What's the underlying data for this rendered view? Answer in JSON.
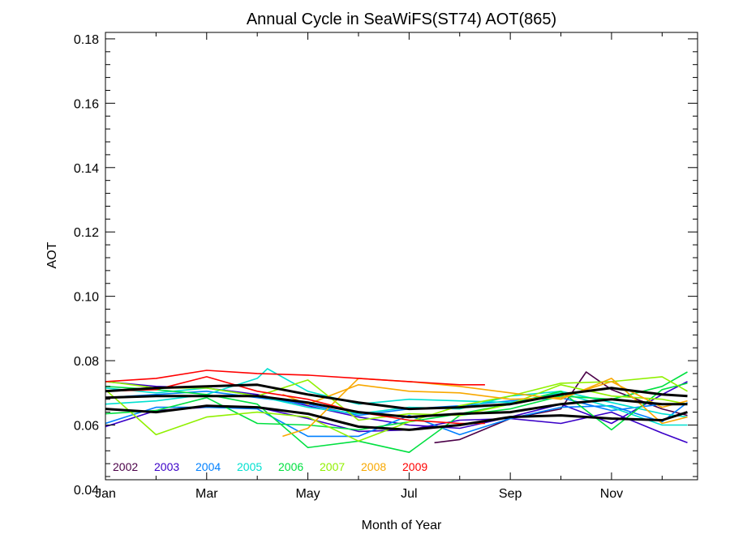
{
  "chart_data": {
    "type": "line",
    "title": "Annual Cycle in SeaWiFS(ST74) AOT(865)",
    "xlabel": "Month of Year",
    "ylabel": "AOT",
    "xlim": [
      1,
      12.7
    ],
    "ylim": [
      0.043,
      0.182
    ],
    "x_ticks": [
      1,
      3,
      5,
      7,
      9,
      11
    ],
    "x_tick_labels": [
      "Jan",
      "Mar",
      "May",
      "Jul",
      "Sep",
      "Nov"
    ],
    "y_ticks": [
      0.04,
      0.06,
      0.08,
      0.1,
      0.12,
      0.14,
      0.16,
      0.18
    ],
    "y_tick_labels": [
      "0.04",
      "0.06",
      "0.08",
      "0.10",
      "0.12",
      "0.14",
      "0.16",
      "0.18"
    ],
    "legend_position": "bottom-left",
    "series": [
      {
        "name": "2002",
        "color": "#4B0048",
        "lines": [
          {
            "x": [
              7.5,
              8,
              9,
              10,
              10.5,
              11,
              12,
              12.5
            ],
            "y": [
              0.0545,
              0.0555,
              0.062,
              0.065,
              0.0765,
              0.071,
              0.065,
              0.063
            ]
          }
        ]
      },
      {
        "name": "2003",
        "color": "#3A00C8",
        "lines": [
          {
            "x": [
              1,
              2,
              3,
              4,
              5,
              6,
              7,
              8,
              9,
              10,
              11,
              12,
              12.5
            ],
            "y": [
              0.0735,
              0.072,
              0.0715,
              0.0695,
              0.066,
              0.0625,
              0.06,
              0.059,
              0.0625,
              0.0665,
              0.0605,
              0.0695,
              0.0735
            ]
          },
          {
            "x": [
              1,
              2,
              3,
              4,
              5,
              6,
              7,
              8,
              9,
              10,
              11,
              12,
              12.5
            ],
            "y": [
              0.0595,
              0.0645,
              0.0655,
              0.0655,
              0.062,
              0.058,
              0.0585,
              0.0615,
              0.062,
              0.0605,
              0.064,
              0.0575,
              0.0545
            ]
          }
        ]
      },
      {
        "name": "2004",
        "color": "#0080FF",
        "lines": [
          {
            "x": [
              1,
              2,
              3,
              4,
              5,
              6,
              7,
              8,
              9,
              10,
              11,
              12,
              12.5
            ],
            "y": [
              0.0605,
              0.0655,
              0.0655,
              0.065,
              0.0565,
              0.0565,
              0.063,
              0.057,
              0.062,
              0.0655,
              0.066,
              0.061,
              0.067
            ]
          },
          {
            "x": [
              1,
              2,
              3,
              4,
              5,
              6,
              7,
              8,
              9,
              10,
              11,
              12,
              12.5
            ],
            "y": [
              0.0685,
              0.0695,
              0.0705,
              0.0685,
              0.0665,
              0.063,
              0.065,
              0.066,
              0.0675,
              0.0685,
              0.0645,
              0.0665,
              0.0665
            ]
          }
        ]
      },
      {
        "name": "2005",
        "color": "#00E0D0",
        "lines": [
          {
            "x": [
              1,
              2,
              3,
              4,
              4.2,
              5,
              6,
              7,
              8,
              9,
              10,
              11,
              12,
              12.5
            ],
            "y": [
              0.0665,
              0.0675,
              0.0695,
              0.0745,
              0.0775,
              0.0705,
              0.0665,
              0.068,
              0.0675,
              0.067,
              0.07,
              0.0655,
              0.06,
              0.06
            ]
          },
          {
            "x": [
              1,
              2,
              3,
              4,
              5,
              6,
              7,
              8,
              9,
              10,
              11,
              12,
              12.5
            ],
            "y": [
              0.0715,
              0.07,
              0.0715,
              0.069,
              0.0655,
              0.0635,
              0.0655,
              0.065,
              0.069,
              0.0705,
              0.067,
              0.0635,
              0.0625
            ]
          }
        ]
      },
      {
        "name": "2006",
        "color": "#00E040",
        "lines": [
          {
            "x": [
              1,
              2,
              3,
              4,
              5,
              6,
              7,
              8,
              9,
              10,
              11,
              12,
              12.5
            ],
            "y": [
              0.072,
              0.071,
              0.0695,
              0.0665,
              0.053,
              0.055,
              0.0515,
              0.063,
              0.065,
              0.069,
              0.068,
              0.072,
              0.0765
            ]
          },
          {
            "x": [
              1,
              2,
              3,
              4,
              5,
              6,
              7,
              8,
              9,
              10,
              11,
              12,
              12.5
            ],
            "y": [
              0.0635,
              0.0645,
              0.0685,
              0.0605,
              0.06,
              0.0585,
              0.061,
              0.0635,
              0.0665,
              0.0705,
              0.0585,
              0.071,
              0.073
            ]
          }
        ]
      },
      {
        "name": "2007",
        "color": "#90F000",
        "lines": [
          {
            "x": [
              1,
              2,
              3,
              4,
              5,
              6,
              7,
              8,
              9,
              10,
              11,
              12,
              12.5
            ],
            "y": [
              0.071,
              0.057,
              0.0625,
              0.064,
              0.0625,
              0.055,
              0.061,
              0.066,
              0.069,
              0.073,
              0.0735,
              0.075,
              0.0705
            ]
          },
          {
            "x": [
              1,
              1.3,
              2,
              3,
              4,
              5,
              6,
              7,
              8,
              9,
              10,
              11,
              12,
              12.5
            ],
            "y": [
              0.0735,
              0.073,
              0.0715,
              0.0715,
              0.069,
              0.074,
              0.0615,
              0.0635,
              0.063,
              0.0665,
              0.0725,
              0.069,
              0.068,
              0.0665
            ]
          }
        ]
      },
      {
        "name": "2008",
        "color": "#F8A800",
        "lines": [
          {
            "x": [
              4.5,
              5,
              6,
              7,
              8,
              9,
              10,
              11,
              12,
              12.5
            ],
            "y": [
              0.0565,
              0.059,
              0.0745,
              0.0735,
              0.072,
              0.07,
              0.068,
              0.0745,
              0.0605,
              0.0625
            ]
          },
          {
            "x": [
              4.5,
              5,
              6,
              7,
              8,
              9,
              10,
              11,
              12,
              12.5
            ],
            "y": [
              0.0695,
              0.0665,
              0.0725,
              0.0705,
              0.07,
              0.068,
              0.0685,
              0.0735,
              0.0655,
              0.0675
            ]
          }
        ]
      },
      {
        "name": "2009",
        "color": "#FF0000",
        "lines": [
          {
            "x": [
              1,
              2,
              3,
              4,
              5,
              6,
              7,
              8,
              8.5
            ],
            "y": [
              0.0735,
              0.0745,
              0.077,
              0.076,
              0.0755,
              0.0745,
              0.0735,
              0.0725,
              0.0725
            ]
          },
          {
            "x": [
              1,
              2,
              3,
              4,
              5,
              6,
              7,
              8,
              8.5
            ],
            "y": [
              0.0705,
              0.071,
              0.075,
              0.0705,
              0.068,
              0.064,
              0.0615,
              0.0605,
              0.0605
            ]
          }
        ]
      },
      {
        "color": "#000000",
        "width": 3,
        "lines": [
          {
            "x": [
              1,
              2,
              3,
              4,
              5,
              6,
              7,
              8,
              9,
              10,
              11,
              12,
              12.5
            ],
            "y": [
              0.0705,
              0.0715,
              0.072,
              0.0725,
              0.0695,
              0.067,
              0.065,
              0.0655,
              0.0665,
              0.0695,
              0.0715,
              0.0695,
              0.069
            ]
          },
          {
            "x": [
              1,
              2,
              3,
              4,
              5,
              6,
              7,
              8,
              9,
              10,
              11,
              12,
              12.5
            ],
            "y": [
              0.0685,
              0.069,
              0.069,
              0.069,
              0.067,
              0.064,
              0.0625,
              0.0635,
              0.064,
              0.0665,
              0.068,
              0.0665,
              0.0665
            ]
          },
          {
            "x": [
              1,
              2,
              3,
              4,
              5,
              6,
              7,
              8,
              9,
              10,
              11,
              12,
              12.5
            ],
            "y": [
              0.065,
              0.064,
              0.066,
              0.0655,
              0.0635,
              0.0595,
              0.0585,
              0.06,
              0.0625,
              0.063,
              0.062,
              0.0615,
              0.064
            ]
          }
        ]
      }
    ]
  }
}
